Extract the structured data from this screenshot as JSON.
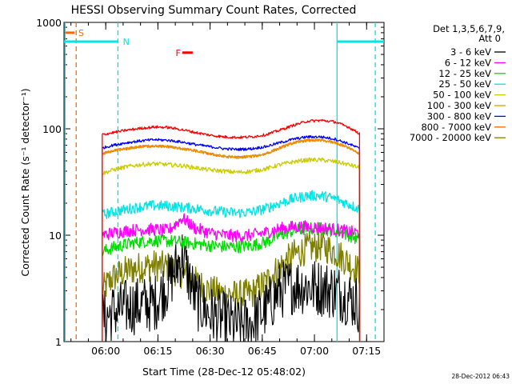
{
  "chart_data": {
    "type": "line",
    "title": "HESSI Observing Summary Count Rates, Corrected",
    "xlabel": "Start Time (28-Dec-12 05:48:02)",
    "ylabel": "Corrected Count Rate (s⁻¹ detector⁻¹)",
    "yscale": "log",
    "ylim": [
      1,
      1000
    ],
    "xlim_minutes_after_start": [
      0,
      92
    ],
    "x_ticks": [
      {
        "minute": 12,
        "label": "06:00"
      },
      {
        "minute": 27,
        "label": "06:15"
      },
      {
        "minute": 42,
        "label": "06:30"
      },
      {
        "minute": 57,
        "label": "06:45"
      },
      {
        "minute": 72,
        "label": "07:00"
      },
      {
        "minute": 87,
        "label": "07:15"
      }
    ],
    "y_ticks": [
      {
        "value": 1,
        "label": "1"
      },
      {
        "value": 10,
        "label": "10"
      },
      {
        "value": 100,
        "label": "100"
      },
      {
        "value": 1000,
        "label": "1000"
      }
    ],
    "legend_header": [
      "Det 1,3,5,6,7,9,",
      "Att 0"
    ],
    "legend_placement": "right",
    "timestamp": "28-Dec-2012 06:43",
    "x_minutes": [
      11,
      14,
      18,
      22,
      26,
      30,
      34,
      38,
      42,
      46,
      50,
      54,
      58,
      62,
      66,
      70,
      74,
      78,
      82,
      85
    ],
    "series": [
      {
        "name": "3 - 6 keV",
        "color": "#000000",
        "values": [
          1.6,
          1.9,
          2.1,
          2.2,
          2.3,
          3.5,
          6.5,
          2.4,
          1.8,
          1.6,
          1.4,
          1.5,
          2.0,
          3.0,
          3.4,
          3.3,
          3.2,
          3.0,
          2.6,
          2.2
        ]
      },
      {
        "name": "6 - 12 keV",
        "color": "#ff00ff",
        "values": [
          10.0,
          10.5,
          11.0,
          11.3,
          11.3,
          11.0,
          14.5,
          11.5,
          10.5,
          10.0,
          9.8,
          10.0,
          10.6,
          11.5,
          12.0,
          12.0,
          11.8,
          11.3,
          10.8,
          10.5
        ]
      },
      {
        "name": "12 - 25 keV",
        "color": "#00dd00",
        "values": [
          7.0,
          7.6,
          8.2,
          8.7,
          8.9,
          8.8,
          8.6,
          8.3,
          8.0,
          7.8,
          7.8,
          8.0,
          8.6,
          10.0,
          11.0,
          11.5,
          11.5,
          11.0,
          10.0,
          9.0
        ]
      },
      {
        "name": "25 - 50 keV",
        "color": "#00e5e5",
        "values": [
          15.5,
          16.5,
          17.5,
          18.5,
          19.0,
          18.8,
          18.3,
          17.8,
          17.0,
          16.5,
          16.2,
          16.5,
          17.8,
          20.0,
          22.0,
          23.5,
          23.5,
          22.0,
          19.5,
          17.5
        ]
      },
      {
        "name": "50 - 100 keV",
        "color": "#cccc00",
        "values": [
          38,
          41,
          44,
          46,
          47,
          46,
          45,
          43,
          41,
          40,
          39,
          40,
          42,
          46,
          49,
          51,
          51,
          49,
          46,
          43
        ]
      },
      {
        "name": "100 - 300 keV",
        "color": "#e69900",
        "values": [
          58,
          62,
          65,
          68,
          69,
          68,
          65,
          62,
          58,
          55,
          54,
          55,
          58,
          66,
          74,
          78,
          78,
          74,
          66,
          58
        ]
      },
      {
        "name": "300 - 800 keV",
        "color": "#0000ff",
        "values": [
          66,
          70,
          74,
          77,
          79,
          78,
          75,
          71,
          68,
          65,
          64,
          65,
          68,
          74,
          80,
          84,
          84,
          80,
          72,
          65
        ]
      },
      {
        "name": "800 - 7000 keV",
        "color": "#ff6600",
        "values": [
          58,
          62,
          65,
          68,
          69,
          68,
          65,
          62,
          58,
          55,
          54,
          55,
          58,
          66,
          74,
          78,
          78,
          74,
          66,
          58
        ]
      },
      {
        "name": "7000 - 20000 keV",
        "color": "#808000",
        "values": [
          3.0,
          4.0,
          4.6,
          5.0,
          5.2,
          5.0,
          4.4,
          3.6,
          3.0,
          2.8,
          2.7,
          2.8,
          3.6,
          5.0,
          6.5,
          7.5,
          8.0,
          7.0,
          5.5,
          4.5
        ]
      },
      {
        "name": "",
        "color": "#ff0000",
        "values": [
          88,
          92,
          97,
          101,
          104,
          103,
          98,
          92,
          87,
          84,
          83,
          84,
          88,
          97,
          108,
          118,
          120,
          116,
          103,
          90
        ]
      }
    ],
    "markers": [
      {
        "label": "S",
        "color": "#ff6600",
        "minute": 3.5,
        "value": 800
      },
      {
        "label": "N",
        "color": "#00e5e5",
        "minute": 16,
        "value": 650
      },
      {
        "label": "F",
        "color": "#ff0000",
        "minute": 35,
        "value": 530
      }
    ],
    "vertical_lines": [
      {
        "minute": 0.3,
        "color": "#00e5e5",
        "style": "solid"
      },
      {
        "minute": 3.5,
        "color": "#ff6600",
        "style": "dashed"
      },
      {
        "minute": 15.5,
        "color": "#00e5e5",
        "style": "dashed"
      },
      {
        "minute": 78.5,
        "color": "#00e5e5",
        "style": "solid"
      },
      {
        "minute": 89.5,
        "color": "#00e5e5",
        "style": "dashed"
      }
    ],
    "night_bars": [
      {
        "from_minute": 0,
        "to_minute": 15.5,
        "value": 660
      },
      {
        "from_minute": 78.5,
        "to_minute": 92,
        "value": 660
      }
    ],
    "saa_bar": {
      "from_minute": 0.5,
      "to_minute": 3.0,
      "value": 800
    },
    "flare_bar": {
      "from_minute": 34,
      "to_minute": 37,
      "value": 520
    }
  }
}
